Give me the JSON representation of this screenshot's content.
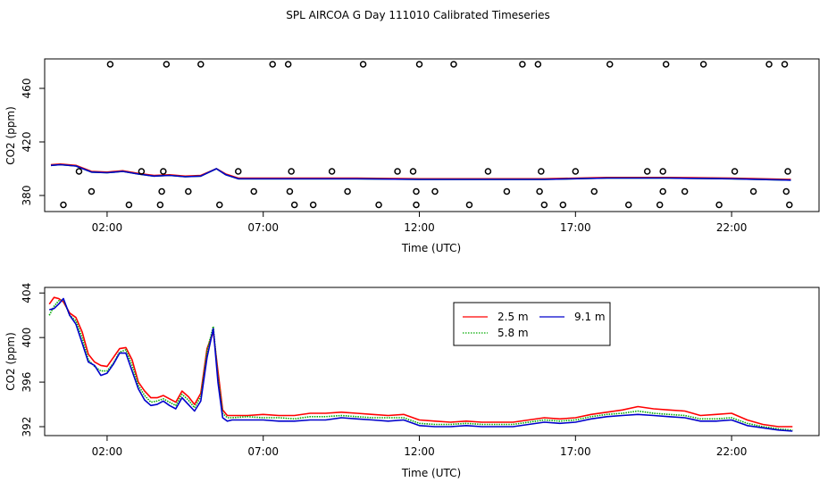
{
  "title": "SPL AIRCOA G  Day 111010  Calibrated Timeseries",
  "chart_data": [
    {
      "type": "scatter",
      "xlabel": "Time (UTC)",
      "ylabel": "CO2 (ppm)",
      "xlim": [
        0,
        24.8
      ],
      "ylim": [
        368,
        482
      ],
      "xticks": [
        2,
        7,
        12,
        17,
        22
      ],
      "xtick_labels": [
        "02:00",
        "07:00",
        "12:00",
        "17:00",
        "22:00"
      ],
      "yticks": [
        380,
        420,
        460
      ],
      "ytick_labels": [
        "380",
        "420",
        "460"
      ],
      "grid": false,
      "points": [
        [
          0.6,
          373
        ],
        [
          1.1,
          398
        ],
        [
          1.5,
          383
        ],
        [
          2.1,
          478
        ],
        [
          2.7,
          373
        ],
        [
          3.1,
          398
        ],
        [
          3.7,
          373
        ],
        [
          3.75,
          383
        ],
        [
          3.8,
          398
        ],
        [
          3.9,
          478
        ],
        [
          4.6,
          383
        ],
        [
          5.0,
          478
        ],
        [
          5.6,
          373
        ],
        [
          6.2,
          398
        ],
        [
          6.7,
          383
        ],
        [
          7.3,
          478
        ],
        [
          7.8,
          478
        ],
        [
          7.85,
          383
        ],
        [
          7.9,
          398
        ],
        [
          8.0,
          373
        ],
        [
          8.6,
          373
        ],
        [
          9.2,
          398
        ],
        [
          9.7,
          383
        ],
        [
          10.2,
          478
        ],
        [
          10.7,
          373
        ],
        [
          11.3,
          398
        ],
        [
          11.8,
          398
        ],
        [
          11.9,
          383
        ],
        [
          11.9,
          373
        ],
        [
          12.0,
          478
        ],
        [
          12.5,
          383
        ],
        [
          13.1,
          478
        ],
        [
          13.6,
          373
        ],
        [
          14.2,
          398
        ],
        [
          14.8,
          383
        ],
        [
          15.3,
          478
        ],
        [
          15.8,
          478
        ],
        [
          15.85,
          383
        ],
        [
          15.9,
          398
        ],
        [
          16.0,
          373
        ],
        [
          16.6,
          373
        ],
        [
          17.0,
          398
        ],
        [
          17.6,
          383
        ],
        [
          18.1,
          478
        ],
        [
          18.7,
          373
        ],
        [
          19.3,
          398
        ],
        [
          19.8,
          383
        ],
        [
          19.8,
          398
        ],
        [
          19.7,
          373
        ],
        [
          19.9,
          478
        ],
        [
          20.5,
          383
        ],
        [
          21.1,
          478
        ],
        [
          21.6,
          373
        ],
        [
          22.1,
          398
        ],
        [
          22.7,
          383
        ],
        [
          23.2,
          478
        ],
        [
          23.7,
          478
        ],
        [
          23.75,
          383
        ],
        [
          23.8,
          398
        ],
        [
          23.85,
          373
        ]
      ],
      "lines": [
        {
          "color": "#ff0000",
          "x": [
            0.2,
            0.5,
            1.0,
            1.5,
            2.0,
            2.5,
            3.0,
            3.5,
            4.0,
            4.5,
            5.0,
            5.5,
            5.8,
            6.2,
            7.0,
            8.0,
            10.0,
            12.0,
            14.0,
            16.0,
            18.0,
            20.0,
            22.0,
            23.9
          ],
          "y": [
            403,
            403.5,
            402.5,
            398,
            397.5,
            398.5,
            396.5,
            395,
            395.5,
            394.5,
            395,
            400,
            396,
            393,
            393,
            393,
            393,
            392.5,
            392.5,
            392.5,
            393.5,
            393.5,
            393,
            392
          ]
        },
        {
          "color": "#00aa00",
          "x": [
            0.2,
            0.5,
            1.0,
            1.5,
            2.0,
            2.5,
            3.0,
            3.5,
            4.0,
            4.5,
            5.0,
            5.5,
            5.8,
            6.2,
            7.0,
            8.0,
            10.0,
            12.0,
            14.0,
            16.0,
            18.0,
            20.0,
            22.0,
            23.9
          ],
          "y": [
            402.5,
            403,
            402,
            397.5,
            397,
            398,
            396,
            394.5,
            395,
            394,
            394.5,
            400,
            395.5,
            392.5,
            392.5,
            392.5,
            392.5,
            392,
            392,
            392,
            393,
            393,
            392.5,
            391.5
          ]
        },
        {
          "color": "#0000cc",
          "x": [
            0.2,
            0.5,
            1.0,
            1.5,
            2.0,
            2.5,
            3.0,
            3.5,
            4.0,
            4.5,
            5.0,
            5.5,
            5.8,
            6.2,
            7.0,
            8.0,
            10.0,
            12.0,
            14.0,
            16.0,
            18.0,
            20.0,
            22.0,
            23.9
          ],
          "y": [
            402.5,
            403,
            402,
            397.5,
            397,
            398,
            396,
            394.5,
            395,
            394,
            394.5,
            400,
            395.5,
            392.5,
            392.5,
            392.5,
            392.5,
            392,
            392,
            392,
            393,
            393,
            392.5,
            391.5
          ]
        }
      ]
    },
    {
      "type": "line",
      "xlabel": "Time (UTC)",
      "ylabel": "CO2 (ppm)",
      "xlim": [
        0,
        24.8
      ],
      "ylim": [
        391.2,
        404.5
      ],
      "xticks": [
        2,
        7,
        12,
        17,
        22
      ],
      "xtick_labels": [
        "02:00",
        "07:00",
        "12:00",
        "17:00",
        "22:00"
      ],
      "yticks": [
        392,
        396,
        400,
        404
      ],
      "ytick_labels": [
        "392",
        "396",
        "400",
        "404"
      ],
      "grid": false,
      "legend_placement": "top-center",
      "series": [
        {
          "name": "2.5 m",
          "color": "#ff0000",
          "linestyle": "solid",
          "x": [
            0.15,
            0.3,
            0.45,
            0.6,
            0.8,
            1.0,
            1.2,
            1.4,
            1.6,
            1.8,
            2.0,
            2.2,
            2.4,
            2.6,
            2.8,
            3.0,
            3.2,
            3.4,
            3.6,
            3.8,
            4.0,
            4.2,
            4.4,
            4.6,
            4.8,
            5.0,
            5.2,
            5.4,
            5.55,
            5.7,
            5.85,
            6.0,
            6.5,
            7.0,
            7.5,
            8.0,
            8.5,
            9.0,
            9.5,
            10.0,
            10.5,
            11.0,
            11.5,
            12.0,
            12.5,
            13.0,
            13.5,
            14.0,
            14.5,
            15.0,
            15.5,
            16.0,
            16.5,
            17.0,
            17.5,
            18.0,
            18.5,
            19.0,
            19.5,
            20.0,
            20.5,
            21.0,
            21.5,
            22.0,
            22.5,
            23.0,
            23.5,
            23.95
          ],
          "y": [
            403.0,
            403.6,
            403.5,
            403.2,
            402.2,
            401.8,
            400.5,
            398.5,
            397.8,
            397.5,
            397.4,
            398.2,
            399.0,
            399.1,
            398.0,
            396.0,
            395.2,
            394.6,
            394.6,
            394.8,
            394.5,
            394.2,
            395.2,
            394.7,
            394.0,
            395.0,
            399.0,
            400.5,
            397.0,
            393.5,
            393.0,
            393.0,
            393.0,
            393.1,
            393.0,
            393.0,
            393.2,
            393.2,
            393.3,
            393.2,
            393.1,
            393.0,
            393.1,
            392.6,
            392.5,
            392.4,
            392.5,
            392.4,
            392.4,
            392.4,
            392.6,
            392.8,
            392.7,
            392.8,
            393.1,
            393.3,
            393.5,
            393.8,
            393.6,
            393.5,
            393.4,
            393.0,
            393.1,
            393.2,
            392.6,
            392.2,
            392.0,
            392.0
          ]
        },
        {
          "name": "5.8 m",
          "color": "#00aa00",
          "linestyle": "dotted",
          "x": [
            0.15,
            0.3,
            0.45,
            0.6,
            0.8,
            1.0,
            1.2,
            1.4,
            1.6,
            1.8,
            2.0,
            2.2,
            2.4,
            2.6,
            2.8,
            3.0,
            3.2,
            3.4,
            3.6,
            3.8,
            4.0,
            4.2,
            4.4,
            4.6,
            4.8,
            5.0,
            5.2,
            5.4,
            5.55,
            5.7,
            5.85,
            6.0,
            6.5,
            7.0,
            7.5,
            8.0,
            8.5,
            9.0,
            9.5,
            10.0,
            10.5,
            11.0,
            11.5,
            12.0,
            12.5,
            13.0,
            13.5,
            14.0,
            14.5,
            15.0,
            15.5,
            16.0,
            16.5,
            17.0,
            17.5,
            18.0,
            18.5,
            19.0,
            19.5,
            20.0,
            20.5,
            21.0,
            21.5,
            22.0,
            22.5,
            23.0,
            23.5,
            23.95
          ],
          "y": [
            402.0,
            402.8,
            403.3,
            403.4,
            402.0,
            401.5,
            400.0,
            398.0,
            397.4,
            397.0,
            397.0,
            397.7,
            398.7,
            398.9,
            397.5,
            395.7,
            394.8,
            394.2,
            394.3,
            394.5,
            394.2,
            393.9,
            394.9,
            394.4,
            393.7,
            394.7,
            398.8,
            401.0,
            396.5,
            393.2,
            392.8,
            392.8,
            392.9,
            392.8,
            392.8,
            392.7,
            392.9,
            392.9,
            393.0,
            392.9,
            392.8,
            392.8,
            392.8,
            392.3,
            392.2,
            392.2,
            392.3,
            392.2,
            392.2,
            392.2,
            392.4,
            392.6,
            392.5,
            392.6,
            392.9,
            393.1,
            393.2,
            393.4,
            393.2,
            393.1,
            393.0,
            392.7,
            392.7,
            392.8,
            392.3,
            392.0,
            391.8,
            391.7
          ]
        },
        {
          "name": "9.1 m",
          "color": "#0000cc",
          "linestyle": "solid",
          "x": [
            0.15,
            0.3,
            0.45,
            0.6,
            0.8,
            1.0,
            1.2,
            1.4,
            1.6,
            1.8,
            2.0,
            2.2,
            2.4,
            2.6,
            2.8,
            3.0,
            3.2,
            3.4,
            3.6,
            3.8,
            4.0,
            4.2,
            4.4,
            4.6,
            4.8,
            5.0,
            5.2,
            5.4,
            5.55,
            5.7,
            5.85,
            6.0,
            6.5,
            7.0,
            7.5,
            8.0,
            8.5,
            9.0,
            9.5,
            10.0,
            10.5,
            11.0,
            11.5,
            12.0,
            12.5,
            13.0,
            13.5,
            14.0,
            14.5,
            15.0,
            15.5,
            16.0,
            16.5,
            17.0,
            17.5,
            18.0,
            18.5,
            19.0,
            19.5,
            20.0,
            20.5,
            21.0,
            21.5,
            22.0,
            22.5,
            23.0,
            23.5,
            23.95
          ],
          "y": [
            402.5,
            402.6,
            403.0,
            403.5,
            402.0,
            401.2,
            399.5,
            397.8,
            397.5,
            396.6,
            396.8,
            397.6,
            398.6,
            398.6,
            397.0,
            395.4,
            394.4,
            393.9,
            394.0,
            394.3,
            393.9,
            393.6,
            394.6,
            394.0,
            393.4,
            394.3,
            398.2,
            400.8,
            396.0,
            392.8,
            392.5,
            392.6,
            392.6,
            392.6,
            392.5,
            392.5,
            392.6,
            392.6,
            392.8,
            392.7,
            392.6,
            392.5,
            392.6,
            392.1,
            392.0,
            392.0,
            392.1,
            392.0,
            392.0,
            392.0,
            392.2,
            392.4,
            392.3,
            392.4,
            392.7,
            392.9,
            393.0,
            393.1,
            393.0,
            392.9,
            392.8,
            392.5,
            392.5,
            392.6,
            392.1,
            391.9,
            391.7,
            391.6
          ]
        }
      ]
    }
  ]
}
